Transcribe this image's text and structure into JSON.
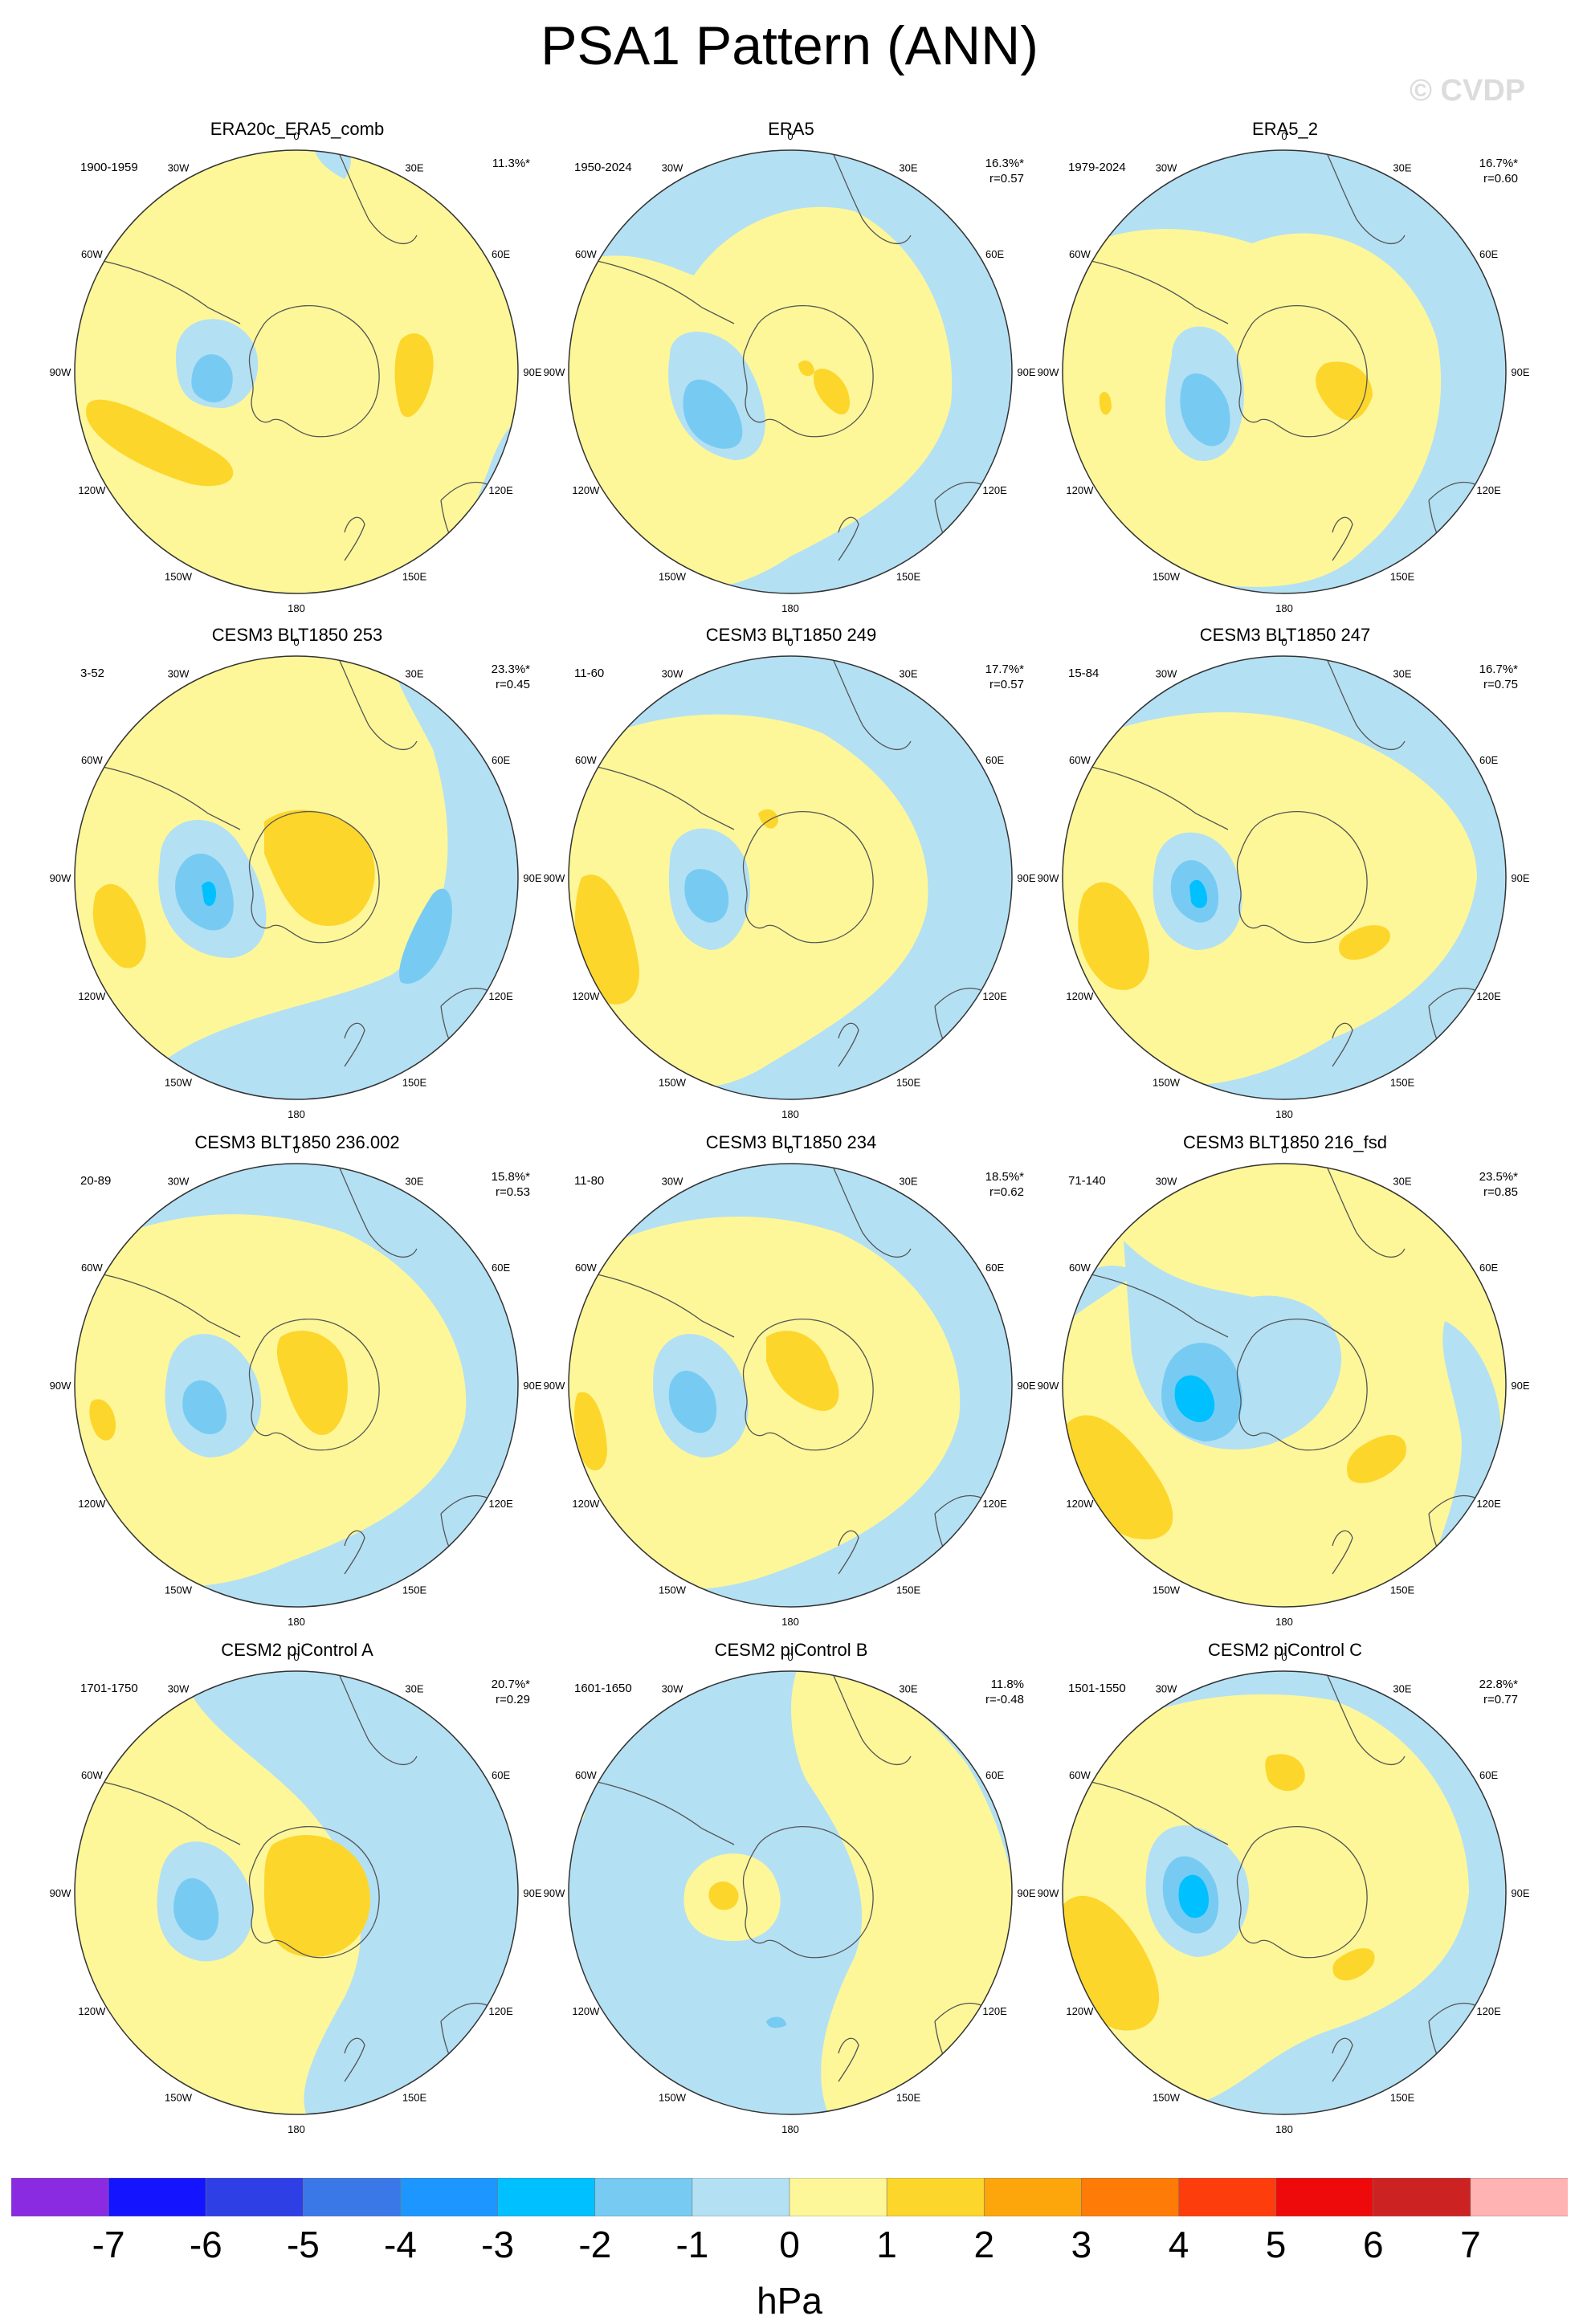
{
  "title": "PSA1 Pattern (ANN)",
  "watermark": "© CVDP",
  "longitude_labels": [
    "0",
    "30E",
    "60E",
    "90E",
    "120E",
    "150E",
    "180",
    "150W",
    "120W",
    "90W",
    "60W",
    "30W"
  ],
  "panels": [
    {
      "title": "ERA20c_ERA5_comb",
      "period": "1900-1959",
      "pct": "11.3%*",
      "r": ""
    },
    {
      "title": "ERA5",
      "period": "1950-2024",
      "pct": "16.3%*",
      "r": "r=0.57"
    },
    {
      "title": "ERA5_2",
      "period": "1979-2024",
      "pct": "16.7%*",
      "r": "r=0.60"
    },
    {
      "title": "CESM3 BLT1850 253",
      "period": "3-52",
      "pct": "23.3%*",
      "r": "r=0.45"
    },
    {
      "title": "CESM3 BLT1850 249",
      "period": "11-60",
      "pct": "17.7%*",
      "r": "r=0.57"
    },
    {
      "title": "CESM3 BLT1850 247",
      "period": "15-84",
      "pct": "16.7%*",
      "r": "r=0.75"
    },
    {
      "title": "CESM3 BLT1850 236.002",
      "period": "20-89",
      "pct": "15.8%*",
      "r": "r=0.53"
    },
    {
      "title": "CESM3 BLT1850 234",
      "period": "11-80",
      "pct": "18.5%*",
      "r": "r=0.62"
    },
    {
      "title": "CESM3 BLT1850 216_fsd",
      "period": "71-140",
      "pct": "23.5%*",
      "r": "r=0.85"
    },
    {
      "title": "CESM2 piControl A",
      "period": "1701-1750",
      "pct": "20.7%*",
      "r": "r=0.29"
    },
    {
      "title": "CESM2 piControl B",
      "period": "1601-1650",
      "pct": "11.8%",
      "r": "r=-0.48"
    },
    {
      "title": "CESM2 piControl C",
      "period": "1501-1550",
      "pct": "22.8%*",
      "r": "r=0.77"
    }
  ],
  "colorbar": {
    "units": "hPa",
    "tick_labels": [
      "-7",
      "-6",
      "-5",
      "-4",
      "-3",
      "-2",
      "-1",
      "0",
      "1",
      "2",
      "3",
      "4",
      "5",
      "6",
      "7"
    ],
    "colors": [
      "#8a2be2",
      "#1414ff",
      "#2e3fe6",
      "#3a78e8",
      "#1e96ff",
      "#00c0ff",
      "#77cbf2",
      "#b4e0f4",
      "#fdf799",
      "#fdd62b",
      "#fca60c",
      "#fd7b06",
      "#fe3d0c",
      "#ee0a0a",
      "#cd2222",
      "#ffb3b3"
    ]
  },
  "colors": {
    "neg1": "#b4e0f4",
    "neg2": "#77cbf2",
    "neg3": "#00c0ff",
    "pos1": "#fdf799",
    "pos2": "#fdd62b",
    "coast": "#555555"
  }
}
